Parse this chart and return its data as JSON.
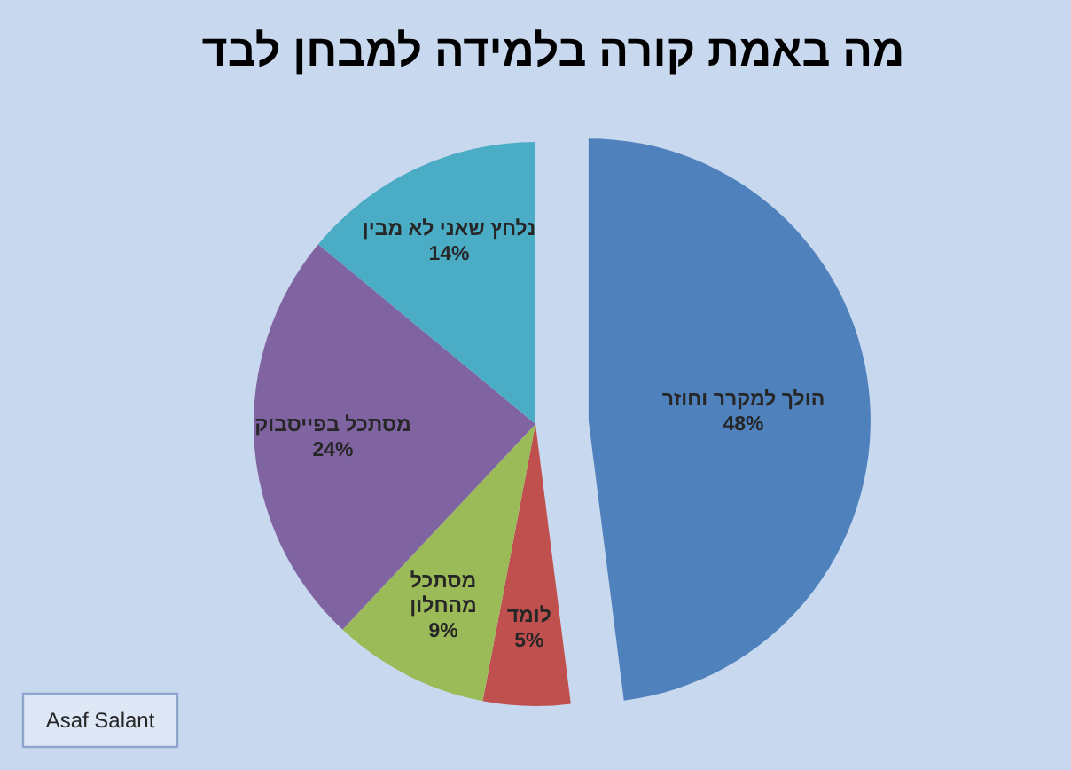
{
  "chart_data": {
    "type": "pie",
    "title": "מה באמת קורה בלמידה למבחן לבד",
    "categories": [
      "הולך למקרר וחוזר",
      "לומד",
      "מסתכל מהחלון",
      "מסתכל בפייסבוק",
      "נלחץ שאני לא מבין"
    ],
    "values": [
      48,
      5,
      9,
      24,
      14
    ],
    "colors": [
      "#4f81bd",
      "#c0504d",
      "#9bbb59",
      "#8064a2",
      "#4bacc6"
    ],
    "value_labels": [
      "48%",
      "5%",
      "9%",
      "24%",
      "14%"
    ],
    "annotations": [
      "Asaf Salant"
    ]
  }
}
